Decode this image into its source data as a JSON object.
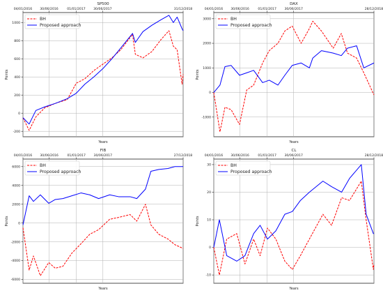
{
  "chart_data": [
    {
      "type": "line",
      "title": "SP500",
      "xlabel": "Years",
      "ylabel": "Points",
      "x_range": [
        "2016-01-04",
        "2018-12-31"
      ],
      "x_ticks": [
        "04/01/2016",
        "30/06/2016",
        "01/01/2017",
        "30/06/2017",
        "31/12/2018"
      ],
      "ylim": [
        -260,
        1110
      ],
      "y_ticks": [
        "-200",
        "0",
        "200",
        "400",
        "600",
        "800",
        "1000"
      ],
      "y_tick_values": [
        -200,
        0,
        200,
        400,
        600,
        800,
        1000
      ],
      "grid": true,
      "legend_position": "top-left",
      "colors": {
        "BH": "#ff0000",
        "Proposed approach": "#0000ff"
      },
      "series": [
        {
          "name": "BH",
          "style": "dashed",
          "x": [
            "2016-01-04",
            "2016-02-15",
            "2016-04-01",
            "2016-06-01",
            "2016-08-15",
            "2016-11-01",
            "2017-01-01",
            "2017-03-01",
            "2017-05-01",
            "2017-07-01",
            "2017-09-01",
            "2017-11-01",
            "2018-01-20",
            "2018-02-08",
            "2018-04-01",
            "2018-06-01",
            "2018-08-01",
            "2018-09-25",
            "2018-10-25",
            "2018-11-20",
            "2018-12-24",
            "2018-12-31"
          ],
          "values": [
            -50,
            -190,
            -40,
            60,
            110,
            150,
            330,
            380,
            470,
            540,
            610,
            700,
            870,
            650,
            610,
            680,
            810,
            910,
            740,
            700,
            320,
            430
          ]
        },
        {
          "name": "Proposed approach",
          "style": "solid",
          "x": [
            "2016-01-04",
            "2016-02-15",
            "2016-04-01",
            "2016-06-01",
            "2016-08-15",
            "2016-11-01",
            "2017-01-01",
            "2017-03-01",
            "2017-05-01",
            "2017-07-01",
            "2017-09-01",
            "2017-11-01",
            "2018-01-20",
            "2018-02-08",
            "2018-04-01",
            "2018-06-01",
            "2018-08-01",
            "2018-09-25",
            "2018-10-25",
            "2018-11-20",
            "2018-12-24",
            "2018-12-31"
          ],
          "values": [
            -50,
            -120,
            30,
            70,
            110,
            160,
            220,
            320,
            400,
            490,
            600,
            720,
            880,
            780,
            900,
            970,
            1030,
            1080,
            1000,
            1060,
            930,
            910
          ]
        }
      ]
    },
    {
      "type": "line",
      "title": "DAX",
      "xlabel": "Years",
      "ylabel": "Points",
      "x_range": [
        "2016-01-04",
        "2018-12-28"
      ],
      "x_ticks": [
        "04/01/2016",
        "30/06/2016",
        "01/01/2017",
        "30/06/2017",
        "28/12/2018"
      ],
      "ylim": [
        -1800,
        3250
      ],
      "y_ticks": [
        "-1000",
        "0",
        "1000",
        "2000",
        "3000"
      ],
      "y_tick_values": [
        -1000,
        0,
        1000,
        2000,
        3000
      ],
      "grid": true,
      "legend_position": "top-left",
      "colors": {
        "BH": "#ff0000",
        "Proposed approach": "#0000ff"
      },
      "series": [
        {
          "name": "BH",
          "style": "dashed",
          "x": [
            "2016-01-04",
            "2016-02-15",
            "2016-03-20",
            "2016-05-01",
            "2016-06-27",
            "2016-08-15",
            "2016-10-01",
            "2016-12-01",
            "2017-01-15",
            "2017-03-15",
            "2017-05-01",
            "2017-06-20",
            "2017-08-20",
            "2017-10-15",
            "2017-11-07",
            "2018-01-05",
            "2018-03-26",
            "2018-05-20",
            "2018-07-01",
            "2018-09-01",
            "2018-10-20",
            "2018-12-28"
          ],
          "values": [
            0,
            -1600,
            -600,
            -700,
            -1300,
            100,
            300,
            1200,
            1700,
            2000,
            2500,
            2700,
            2000,
            2600,
            2900,
            2500,
            1800,
            2400,
            1600,
            1400,
            800,
            -100
          ]
        },
        {
          "name": "Proposed approach",
          "style": "solid",
          "x": [
            "2016-01-04",
            "2016-02-15",
            "2016-03-20",
            "2016-05-01",
            "2016-06-27",
            "2016-08-15",
            "2016-10-01",
            "2016-12-01",
            "2017-01-15",
            "2017-03-15",
            "2017-05-01",
            "2017-06-20",
            "2017-08-20",
            "2017-10-15",
            "2017-11-07",
            "2018-01-05",
            "2018-03-26",
            "2018-05-20",
            "2018-07-01",
            "2018-09-01",
            "2018-10-20",
            "2018-12-28"
          ],
          "values": [
            0,
            300,
            1050,
            1100,
            700,
            800,
            900,
            400,
            500,
            300,
            700,
            1100,
            1200,
            1000,
            1400,
            1700,
            1600,
            1500,
            1800,
            1900,
            1000,
            1200
          ]
        }
      ]
    },
    {
      "type": "line",
      "title": "FIB",
      "xlabel": "Years",
      "ylabel": "Points",
      "x_range": [
        "2016-01-04",
        "2018-12-27"
      ],
      "x_ticks": [
        "04/01/2016",
        "30/06/2016",
        "01/01/2017",
        "30/06/2017",
        "27/12/2018"
      ],
      "ylim": [
        -6400,
        6800
      ],
      "y_ticks": [
        "-6000",
        "-4000",
        "-2000",
        "0",
        "2000",
        "4000",
        "6000"
      ],
      "y_tick_values": [
        -6000,
        -4000,
        -2000,
        0,
        2000,
        4000,
        6000
      ],
      "grid": true,
      "legend_position": "top-left",
      "colors": {
        "BH": "#ff0000",
        "Proposed approach": "#0000ff"
      },
      "series": [
        {
          "name": "BH",
          "style": "dashed",
          "x": [
            "2016-01-04",
            "2016-02-15",
            "2016-03-15",
            "2016-05-01",
            "2016-06-27",
            "2016-08-10",
            "2016-10-01",
            "2016-12-01",
            "2017-02-01",
            "2017-04-01",
            "2017-06-01",
            "2017-08-15",
            "2017-10-15",
            "2018-01-01",
            "2018-02-15",
            "2018-04-15",
            "2018-05-22",
            "2018-07-15",
            "2018-09-15",
            "2018-11-01",
            "2018-12-27"
          ],
          "values": [
            -500,
            -5000,
            -3500,
            -5600,
            -4200,
            -4800,
            -4600,
            -3200,
            -2200,
            -1200,
            -700,
            400,
            600,
            900,
            200,
            2000,
            -200,
            -1200,
            -1700,
            -2300,
            -2700
          ]
        },
        {
          "name": "Proposed approach",
          "style": "solid",
          "x": [
            "2016-01-04",
            "2016-02-15",
            "2016-03-15",
            "2016-05-01",
            "2016-06-27",
            "2016-08-10",
            "2016-10-01",
            "2016-12-01",
            "2017-02-01",
            "2017-04-01",
            "2017-06-01",
            "2017-08-15",
            "2017-10-15",
            "2018-01-01",
            "2018-02-15",
            "2018-04-15",
            "2018-05-22",
            "2018-07-15",
            "2018-09-15",
            "2018-11-01",
            "2018-12-27"
          ],
          "values": [
            -200,
            2900,
            2300,
            3000,
            2100,
            2500,
            2600,
            2900,
            3200,
            3000,
            2600,
            3000,
            2800,
            2800,
            2600,
            3600,
            5500,
            5700,
            5800,
            6000,
            6000
          ]
        }
      ]
    },
    {
      "type": "line",
      "title": "CL",
      "xlabel": "Years",
      "ylabel": "Points",
      "x_range": [
        "2016-01-04",
        "2018-12-28"
      ],
      "x_ticks": [
        "04/01/2016",
        "30/06/2016",
        "01/01/2017",
        "30/06/2017",
        "28/12/2018"
      ],
      "ylim": [
        -13,
        32
      ],
      "y_ticks": [
        "-10",
        "0",
        "10",
        "20",
        "30"
      ],
      "y_tick_values": [
        -10,
        0,
        10,
        20,
        30
      ],
      "grid": true,
      "legend_position": "top-left",
      "colors": {
        "BH": "#ff0000",
        "Proposed approach": "#0000ff"
      },
      "series": [
        {
          "name": "BH",
          "style": "dashed",
          "x": [
            "2016-01-04",
            "2016-02-11",
            "2016-04-01",
            "2016-06-08",
            "2016-08-03",
            "2016-10-01",
            "2016-11-14",
            "2017-01-03",
            "2017-03-01",
            "2017-05-01",
            "2017-06-21",
            "2017-08-15",
            "2017-10-15",
            "2018-01-15",
            "2018-03-15",
            "2018-05-22",
            "2018-07-15",
            "2018-10-03",
            "2018-11-05",
            "2018-12-24",
            "2018-12-28"
          ],
          "values": [
            0,
            -10,
            3,
            5,
            -6,
            3,
            -3,
            7,
            3,
            -5,
            -8,
            -3,
            3,
            12,
            8,
            18,
            17,
            24,
            10,
            -8,
            -6
          ]
        },
        {
          "name": "Proposed approach",
          "style": "solid",
          "x": [
            "2016-01-04",
            "2016-02-11",
            "2016-04-01",
            "2016-06-08",
            "2016-08-03",
            "2016-10-01",
            "2016-11-14",
            "2017-01-03",
            "2017-03-01",
            "2017-05-01",
            "2017-06-21",
            "2017-08-15",
            "2017-10-15",
            "2018-01-15",
            "2018-03-15",
            "2018-05-22",
            "2018-07-15",
            "2018-10-03",
            "2018-11-05",
            "2018-12-24",
            "2018-12-28"
          ],
          "values": [
            0,
            10,
            -3,
            -5,
            -3,
            5,
            8,
            3,
            6,
            12,
            13,
            17,
            20,
            24,
            22,
            20,
            25,
            30,
            12,
            5,
            5
          ]
        }
      ]
    }
  ]
}
